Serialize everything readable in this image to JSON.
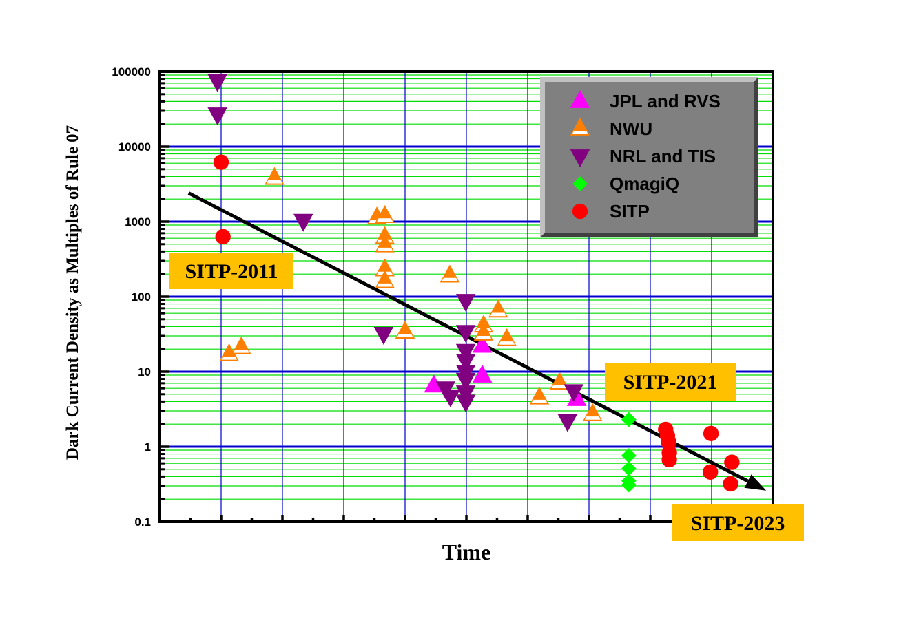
{
  "chart_data": {
    "type": "scatter",
    "xlabel": "Time",
    "ylabel": "Dark Current Density as Multiples of Rule 07",
    "yscale": "log",
    "ylim": [
      0.1,
      100000
    ],
    "xlim": [
      0,
      10
    ],
    "x_units": "relative time index (major tick = 1, unlabeled)",
    "y_tick_labels": [
      "0.1",
      "1",
      "10",
      "100",
      "1000",
      "10000",
      "100000"
    ],
    "y_ticks": [
      0.1,
      1,
      10,
      100,
      1000,
      10000,
      100000
    ],
    "x_major_ticks": [
      1,
      2,
      3,
      4,
      5,
      6,
      7,
      8,
      9
    ],
    "x_minor_ticks": [
      0.5,
      1.5,
      2.5,
      3.5,
      4.5,
      5.5,
      6.5,
      7.5,
      8.5,
      9.5
    ],
    "grid": true,
    "legend_position": "top-right",
    "colors": {
      "major_grid_h": "#0000cc",
      "minor_grid_h": "#00dd00",
      "grid_v": "#0000cc",
      "legend_bg": "#808080",
      "annotation_bg": "#ffc000"
    },
    "series": [
      {
        "name": "JPL and RVS",
        "marker": "triangle-up",
        "color": "#ff00ff",
        "hollow_band": false,
        "points": [
          [
            4.47,
            6.5
          ],
          [
            5.26,
            22
          ],
          [
            5.26,
            8.8
          ],
          [
            6.8,
            4.3
          ]
        ]
      },
      {
        "name": "NWU",
        "marker": "triangle-up",
        "color": "#ff8000",
        "hollow_band": true,
        "points": [
          [
            1.13,
            17
          ],
          [
            1.33,
            21
          ],
          [
            1.87,
            3800
          ],
          [
            3.54,
            1130
          ],
          [
            3.67,
            1180
          ],
          [
            3.67,
            620
          ],
          [
            3.67,
            480
          ],
          [
            3.67,
            230
          ],
          [
            3.67,
            160
          ],
          [
            4.73,
            190
          ],
          [
            4.0,
            34
          ],
          [
            5.28,
            41
          ],
          [
            5.28,
            32
          ],
          [
            5.52,
            65
          ],
          [
            5.66,
            27
          ],
          [
            6.19,
            4.5
          ],
          [
            6.52,
            7.1
          ],
          [
            7.06,
            2.7
          ]
        ]
      },
      {
        "name": "NRL and TIS",
        "marker": "triangle-down",
        "color": "#800080",
        "hollow_band": false,
        "points": [
          [
            0.94,
            75000
          ],
          [
            0.94,
            27000
          ],
          [
            2.34,
            1030
          ],
          [
            3.65,
            32
          ],
          [
            4.99,
            88
          ],
          [
            4.99,
            34
          ],
          [
            4.99,
            19
          ],
          [
            4.99,
            14
          ],
          [
            4.99,
            10
          ],
          [
            4.99,
            7.8
          ],
          [
            4.99,
            5.3
          ],
          [
            4.99,
            4.0
          ],
          [
            4.66,
            6.0
          ],
          [
            4.74,
            4.7
          ],
          [
            6.75,
            5.5
          ],
          [
            6.65,
            2.2
          ]
        ]
      },
      {
        "name": "QmagiQ",
        "marker": "diamond",
        "color": "#00ff00",
        "hollow_band": false,
        "points": [
          [
            7.65,
            2.3
          ],
          [
            7.65,
            0.76
          ],
          [
            7.65,
            0.51
          ],
          [
            7.65,
            0.35
          ],
          [
            7.65,
            0.31
          ]
        ]
      },
      {
        "name": "SITP",
        "marker": "circle",
        "color": "#ff0000",
        "hollow_band": false,
        "points": [
          [
            1.0,
            6200
          ],
          [
            1.03,
            630
          ],
          [
            8.25,
            1.7
          ],
          [
            8.28,
            1.4
          ],
          [
            8.3,
            1.15
          ],
          [
            8.31,
            0.83
          ],
          [
            8.31,
            0.67
          ],
          [
            8.99,
            1.5
          ],
          [
            8.98,
            0.46
          ],
          [
            9.33,
            0.62
          ],
          [
            9.31,
            0.32
          ]
        ]
      }
    ],
    "trend_arrow": {
      "from": [
        0.47,
        2400
      ],
      "to": [
        9.89,
        0.26
      ],
      "color": "#000000"
    },
    "annotations": [
      {
        "text": "SITP-2011"
      },
      {
        "text": "SITP-2021"
      },
      {
        "text": "SITP-2023"
      }
    ]
  }
}
